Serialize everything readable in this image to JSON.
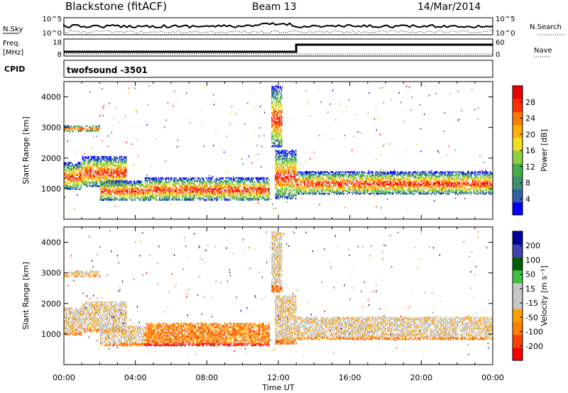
{
  "header": {
    "title": "Blackstone (fitACF)",
    "beam": "Beam 13",
    "date": "14/Mar/2014"
  },
  "aux": {
    "nsky_label": "N.Sky",
    "nsky_ticks": [
      "10^5",
      "10^0"
    ],
    "nsearch_label": "N.Search",
    "nsearch_ticks": [
      "10^5",
      "10^0"
    ],
    "freq_label": "Freq.",
    "freq_unit": "[MHz]",
    "freq_ticks": [
      "18",
      "8"
    ],
    "nave_label": "Nave",
    "nave_ticks": [
      "60",
      "0"
    ],
    "cpid_label": "CPID",
    "cpid_value": "twofsound -3501"
  },
  "x_axis": {
    "label": "Time UT",
    "ticks": [
      "00:00",
      "04:00",
      "08:00",
      "12:00",
      "16:00",
      "20:00",
      "00:00"
    ],
    "range_hours": [
      0,
      24
    ]
  },
  "chart_data": [
    {
      "type": "heatmap",
      "name": "power",
      "ylabel": "Slant Range [km]",
      "ylim": [
        0,
        4500
      ],
      "yticks": [
        1000,
        2000,
        3000,
        4000
      ],
      "xlim": [
        0,
        24
      ],
      "colorbar": {
        "label": "Power [dB]",
        "ticks": [
          "28",
          "24",
          "20",
          "16",
          "12",
          "8",
          "4"
        ],
        "range": [
          0,
          32
        ],
        "colors": [
          "#0000ff",
          "#2f5fa8",
          "#3c8f6f",
          "#44b04a",
          "#90d040",
          "#f0e020",
          "#ffb000",
          "#ff7a00",
          "#ff3000",
          "#ee0000"
        ]
      },
      "echo_bands": [
        {
          "t0": 0.0,
          "t1": 1.0,
          "r0": 1000,
          "r1": 1900
        },
        {
          "t0": 1.0,
          "t1": 3.5,
          "r0": 1100,
          "r1": 2100
        },
        {
          "t0": 2.0,
          "t1": 4.5,
          "r0": 650,
          "r1": 1300
        },
        {
          "t0": 4.5,
          "t1": 11.5,
          "r0": 650,
          "r1": 1400
        },
        {
          "t0": 11.8,
          "t1": 13.0,
          "r0": 700,
          "r1": 2300
        },
        {
          "t0": 13.0,
          "t1": 24.0,
          "r0": 850,
          "r1": 1600
        },
        {
          "t0": 0.0,
          "t1": 2.0,
          "r0": 2900,
          "r1": 3100
        },
        {
          "t0": 11.6,
          "t1": 12.2,
          "r0": 2400,
          "r1": 4400
        }
      ]
    },
    {
      "type": "heatmap",
      "name": "velocity",
      "ylabel": "Slant Range [km]",
      "ylim": [
        0,
        4500
      ],
      "yticks": [
        1000,
        2000,
        3000,
        4000
      ],
      "xlim": [
        0,
        24
      ],
      "colorbar": {
        "label": "Velocity [m s⁻¹]",
        "ticks": [
          "200",
          "100",
          "50",
          "15",
          "-15",
          "-50",
          "-100",
          "-200"
        ],
        "range": [
          -250,
          250
        ],
        "colors": [
          "#ff0000",
          "#ff4000",
          "#ff8000",
          "#ffa000",
          "#c8c8c8",
          "#c8c8c8",
          "#40c040",
          "#006000",
          "#4040b0",
          "#0000a0"
        ]
      },
      "echo_bands": [
        {
          "t0": 0.0,
          "t1": 1.0,
          "r0": 1000,
          "r1": 1900
        },
        {
          "t0": 1.0,
          "t1": 3.5,
          "r0": 1100,
          "r1": 2100
        },
        {
          "t0": 2.0,
          "t1": 4.5,
          "r0": 650,
          "r1": 1300
        },
        {
          "t0": 4.5,
          "t1": 11.5,
          "r0": 650,
          "r1": 1400
        },
        {
          "t0": 11.8,
          "t1": 13.0,
          "r0": 700,
          "r1": 2300
        },
        {
          "t0": 13.0,
          "t1": 24.0,
          "r0": 850,
          "r1": 1600
        },
        {
          "t0": 0.0,
          "t1": 2.0,
          "r0": 2900,
          "r1": 3100
        },
        {
          "t0": 11.6,
          "t1": 12.2,
          "r0": 2400,
          "r1": 4400
        }
      ]
    }
  ]
}
